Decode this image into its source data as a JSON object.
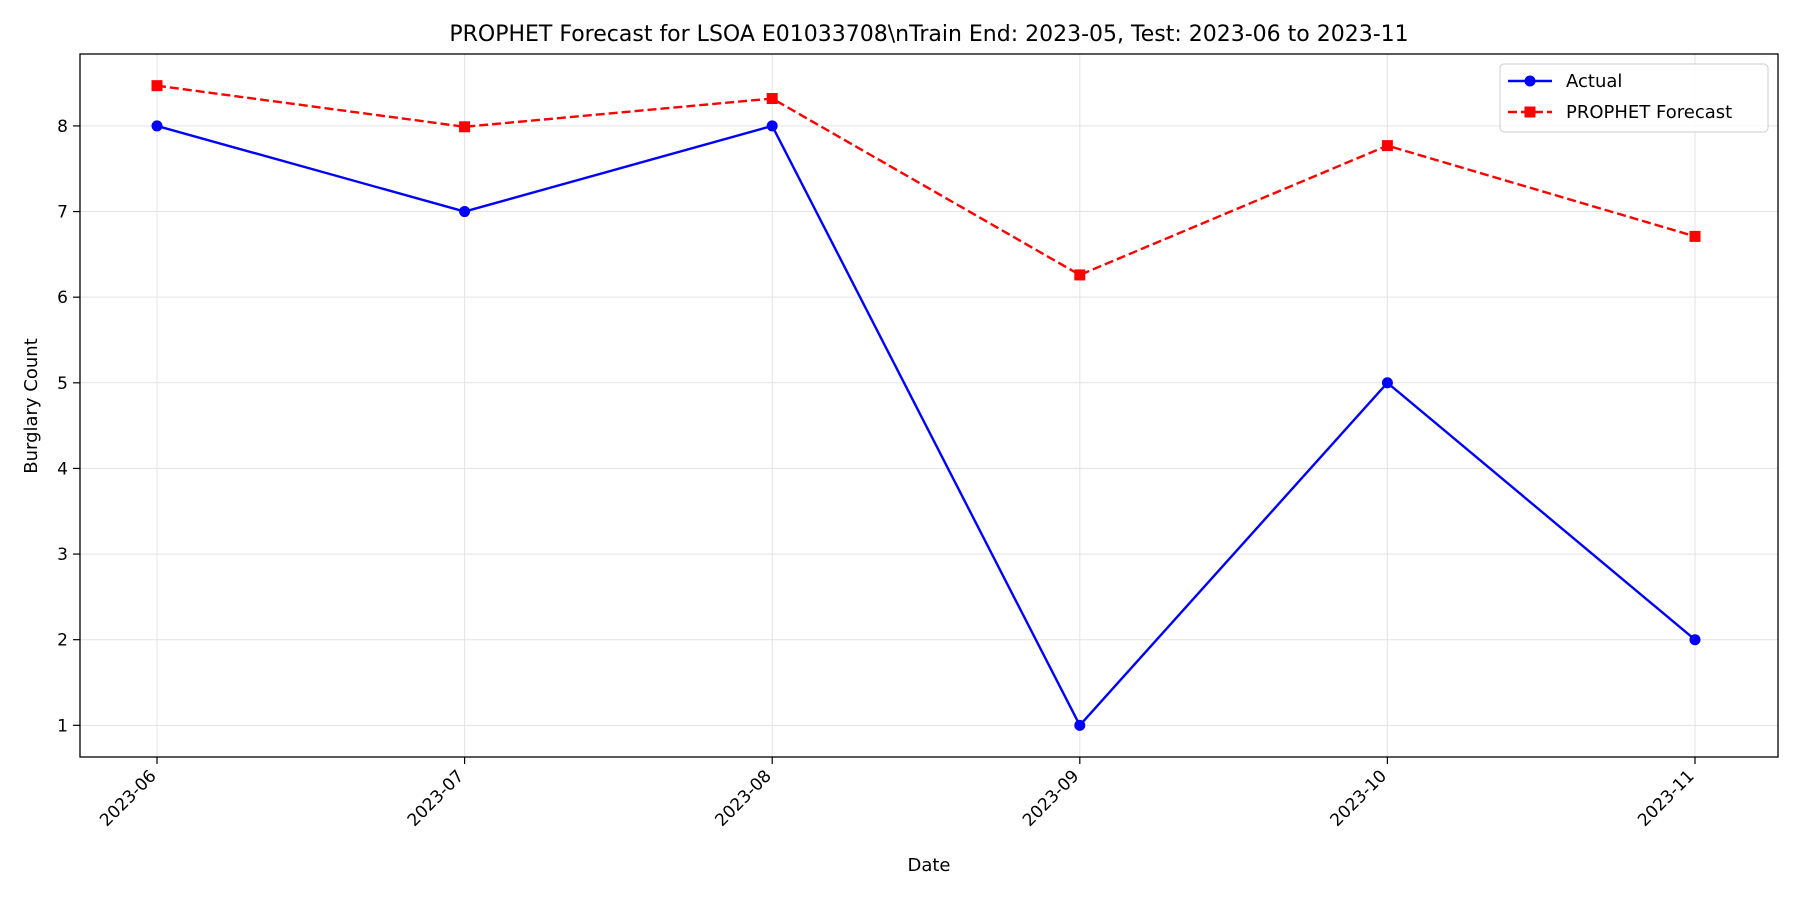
{
  "chart_data": {
    "type": "line",
    "title": "PROPHET Forecast for LSOA E01033708\\nTrain End: 2023-05, Test: 2023-06 to 2023-11",
    "xlabel": "Date",
    "ylabel": "Burglary Count",
    "x": [
      "2023-06",
      "2023-07",
      "2023-08",
      "2023-09",
      "2023-10",
      "2023-11"
    ],
    "ylim": [
      0.63,
      8.84
    ],
    "yticks": [
      1,
      2,
      3,
      4,
      5,
      6,
      7,
      8
    ],
    "grid": true,
    "legend_position": "top-right",
    "series": [
      {
        "name": "Actual",
        "color": "#0000ff",
        "style": "solid",
        "marker": "circle",
        "values": [
          8,
          7,
          8,
          1,
          5,
          2
        ]
      },
      {
        "name": "PROPHET Forecast",
        "color": "#ff0000",
        "style": "dashed",
        "marker": "square",
        "values": [
          8.47,
          7.99,
          8.32,
          6.26,
          7.77,
          6.71
        ]
      }
    ]
  }
}
